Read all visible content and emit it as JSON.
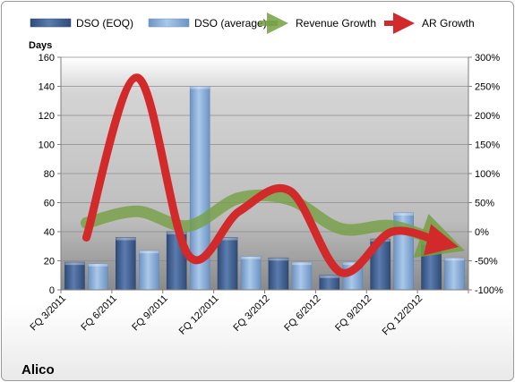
{
  "chart_data": {
    "type": "bar",
    "company": "Alico",
    "categories": [
      "FQ 3/2011",
      "FQ 6/2011",
      "FQ 9/2011",
      "FQ 12/2011",
      "FQ 3/2012",
      "FQ 6/2012",
      "FQ 9/2012",
      "FQ 12/2012"
    ],
    "y_left": {
      "label": "Days",
      "min": 0,
      "max": 160,
      "step": 20
    },
    "y_right": {
      "min": -100,
      "max": 300,
      "step": 50,
      "suffix": "%"
    },
    "bar_series": [
      {
        "name": "DSO (EOQ)",
        "values": [
          19,
          36,
          40,
          36,
          22,
          10,
          35,
          33
        ],
        "color": "#4f6f9f"
      },
      {
        "name": "DSO (average)",
        "values": [
          18,
          27,
          140,
          23,
          19,
          19,
          53,
          22
        ],
        "color": "#8eb4dc"
      }
    ],
    "line_series": [
      {
        "name": "Revenue Growth",
        "axis": "right",
        "values": [
          15,
          35,
          10,
          58,
          55,
          5,
          10,
          -20
        ],
        "color": "#76a043"
      },
      {
        "name": "AR Growth",
        "axis": "right",
        "values": [
          -10,
          265,
          -40,
          35,
          70,
          -70,
          0,
          -20
        ],
        "color": "#d22a2a"
      }
    ],
    "grid": true,
    "legend_position": "top"
  }
}
